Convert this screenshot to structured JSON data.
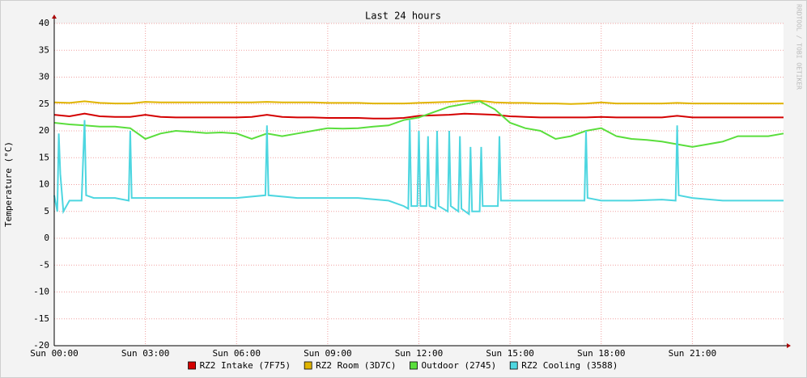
{
  "chart_data": {
    "type": "line",
    "title": "Last 24 hours",
    "y_label": "Temperature (°C)",
    "watermark": "RRDTOOL / TOBI OETIKER",
    "xlim": [
      0,
      24
    ],
    "xticks": [
      {
        "value": 0,
        "label": "Sun 00:00"
      },
      {
        "value": 3,
        "label": "Sun 03:00"
      },
      {
        "value": 6,
        "label": "Sun 06:00"
      },
      {
        "value": 9,
        "label": "Sun 09:00"
      },
      {
        "value": 12,
        "label": "Sun 12:00"
      },
      {
        "value": 15,
        "label": "Sun 15:00"
      },
      {
        "value": 18,
        "label": "Sun 18:00"
      },
      {
        "value": 21,
        "label": "Sun 21:00"
      }
    ],
    "ylim": [
      -20,
      40
    ],
    "yticks": [
      -20,
      -15,
      -10,
      -5,
      0,
      5,
      10,
      15,
      20,
      25,
      30,
      35,
      40
    ],
    "grid": true,
    "legend": "bottom",
    "x": [
      0,
      0.5,
      1,
      1.5,
      2,
      2.5,
      3,
      3.5,
      4,
      4.5,
      5,
      5.5,
      6,
      6.5,
      7,
      7.5,
      8,
      8.5,
      9,
      9.5,
      10,
      10.5,
      11,
      11.5,
      12,
      12.5,
      13,
      13.5,
      14,
      14.5,
      15,
      15.5,
      16,
      16.5,
      17,
      17.5,
      18,
      18.5,
      19,
      19.5,
      20,
      20.5,
      21,
      21.5,
      22,
      22.5,
      23,
      23.5,
      24
    ],
    "series": [
      {
        "name": "RZ2 Intake (7F75)",
        "color": "#d40000",
        "values": [
          23,
          22.7,
          23.2,
          22.7,
          22.6,
          22.6,
          23,
          22.6,
          22.5,
          22.5,
          22.5,
          22.5,
          22.5,
          22.6,
          23,
          22.6,
          22.5,
          22.5,
          22.4,
          22.4,
          22.4,
          22.3,
          22.3,
          22.4,
          22.8,
          22.9,
          23,
          23.2,
          23.1,
          23,
          22.7,
          22.6,
          22.5,
          22.5,
          22.5,
          22.5,
          22.6,
          22.5,
          22.5,
          22.5,
          22.5,
          22.8,
          22.5,
          22.5,
          22.5,
          22.5,
          22.5,
          22.5,
          22.5
        ]
      },
      {
        "name": "RZ2 Room (3D7C)",
        "color": "#e0b400",
        "values": [
          25.3,
          25.2,
          25.5,
          25.2,
          25.1,
          25.1,
          25.4,
          25.3,
          25.3,
          25.3,
          25.3,
          25.3,
          25.3,
          25.3,
          25.4,
          25.3,
          25.3,
          25.3,
          25.2,
          25.2,
          25.2,
          25.1,
          25.1,
          25.1,
          25.2,
          25.3,
          25.4,
          25.6,
          25.6,
          25.3,
          25.2,
          25.2,
          25.1,
          25.1,
          25,
          25.1,
          25.3,
          25.1,
          25.1,
          25.1,
          25.1,
          25.2,
          25.1,
          25.1,
          25.1,
          25.1,
          25.1,
          25.1,
          25.1
        ]
      },
      {
        "name": "Outdoor (2745)",
        "color": "#5ade3c",
        "values": [
          21.5,
          21.2,
          21,
          20.8,
          20.8,
          20.5,
          18.5,
          19.5,
          20,
          19.8,
          19.6,
          19.7,
          19.5,
          18.5,
          19.5,
          19,
          19.5,
          20,
          20.5,
          20.4,
          20.5,
          20.8,
          21,
          22,
          22.5,
          23.5,
          24.5,
          25,
          25.5,
          24,
          21.5,
          20.5,
          20,
          18.5,
          19,
          20,
          20.5,
          19,
          18.5,
          18.3,
          18,
          17.5,
          17,
          17.5,
          18,
          19,
          19,
          19,
          19.5
        ]
      },
      {
        "name": "RZ2 Cooling (3588)",
        "color": "#4dd6e0",
        "x": [
          0,
          0.1,
          0.15,
          0.2,
          0.3,
          0.5,
          0.9,
          1.0,
          1.05,
          1.3,
          2.0,
          2.45,
          2.5,
          2.55,
          3,
          4,
          5,
          6,
          6.95,
          7.0,
          7.05,
          8,
          9,
          10,
          11,
          11.5,
          11.65,
          11.7,
          11.75,
          11.95,
          12.0,
          12.05,
          12.25,
          12.3,
          12.35,
          12.55,
          12.6,
          12.65,
          12.95,
          13.0,
          13.05,
          13.3,
          13.35,
          13.4,
          13.65,
          13.7,
          13.75,
          14.0,
          14.05,
          14.1,
          14.6,
          14.65,
          14.7,
          15,
          16,
          17,
          17.45,
          17.5,
          17.55,
          18,
          19,
          20,
          20.45,
          20.5,
          20.55,
          21,
          22,
          23,
          24
        ],
        "values": [
          8,
          5,
          19.5,
          12,
          5,
          7,
          7,
          22,
          8,
          7.5,
          7.5,
          7,
          20,
          7.5,
          7.5,
          7.5,
          7.5,
          7.5,
          8,
          21,
          8,
          7.5,
          7.5,
          7.5,
          7,
          6,
          5.5,
          22,
          6,
          6,
          20,
          6,
          6,
          19,
          6,
          5.5,
          20,
          6,
          5,
          20,
          6,
          5,
          19,
          5.5,
          4.5,
          17,
          5,
          5,
          17,
          6,
          6,
          19,
          7,
          7,
          7,
          7,
          7,
          20,
          7.5,
          7,
          7,
          7.2,
          7,
          21,
          8,
          7.5,
          7,
          7,
          7
        ]
      }
    ]
  }
}
